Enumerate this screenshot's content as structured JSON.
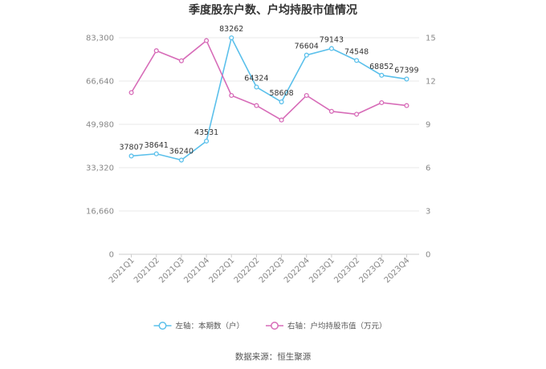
{
  "chart_data": {
    "type": "line",
    "title": "季度股东户数、户均持股市值情况",
    "categories": [
      "2021Q1",
      "2021Q2",
      "2021Q3",
      "2021Q4",
      "2022Q1",
      "2022Q2",
      "2022Q3",
      "2022Q4",
      "2023Q1",
      "2023Q2",
      "2023Q3",
      "2023Q4"
    ],
    "left_axis": {
      "ticks": [
        "0",
        "16,660",
        "33,320",
        "49,980",
        "66,640",
        "83,300"
      ],
      "ylim": [
        0,
        83300
      ]
    },
    "right_axis": {
      "ticks": [
        "0",
        "3",
        "6",
        "9",
        "12",
        "15"
      ],
      "ylim": [
        0,
        15
      ]
    },
    "series": [
      {
        "name": "左轴：本期数（户）",
        "axis": "left",
        "color": "#5bc0eb",
        "values": [
          37807,
          38641,
          36240,
          43531,
          83262,
          64324,
          58608,
          76604,
          79143,
          74548,
          68852,
          67399
        ],
        "labels": [
          "37807",
          "38641",
          "36240",
          "43531",
          "83262",
          "64324",
          "58608",
          "76604",
          "79143",
          "74548",
          "68852",
          "67399"
        ]
      },
      {
        "name": "右轴：户均持股市值（万元）",
        "axis": "right",
        "color": "#d76cb8",
        "values": [
          11.2,
          14.1,
          13.4,
          14.8,
          11.0,
          10.3,
          9.3,
          11.0,
          9.9,
          9.7,
          10.5,
          10.3
        ]
      }
    ],
    "grid": true,
    "legend_position": "bottom"
  },
  "source_text": "数据来源：恒生聚源"
}
